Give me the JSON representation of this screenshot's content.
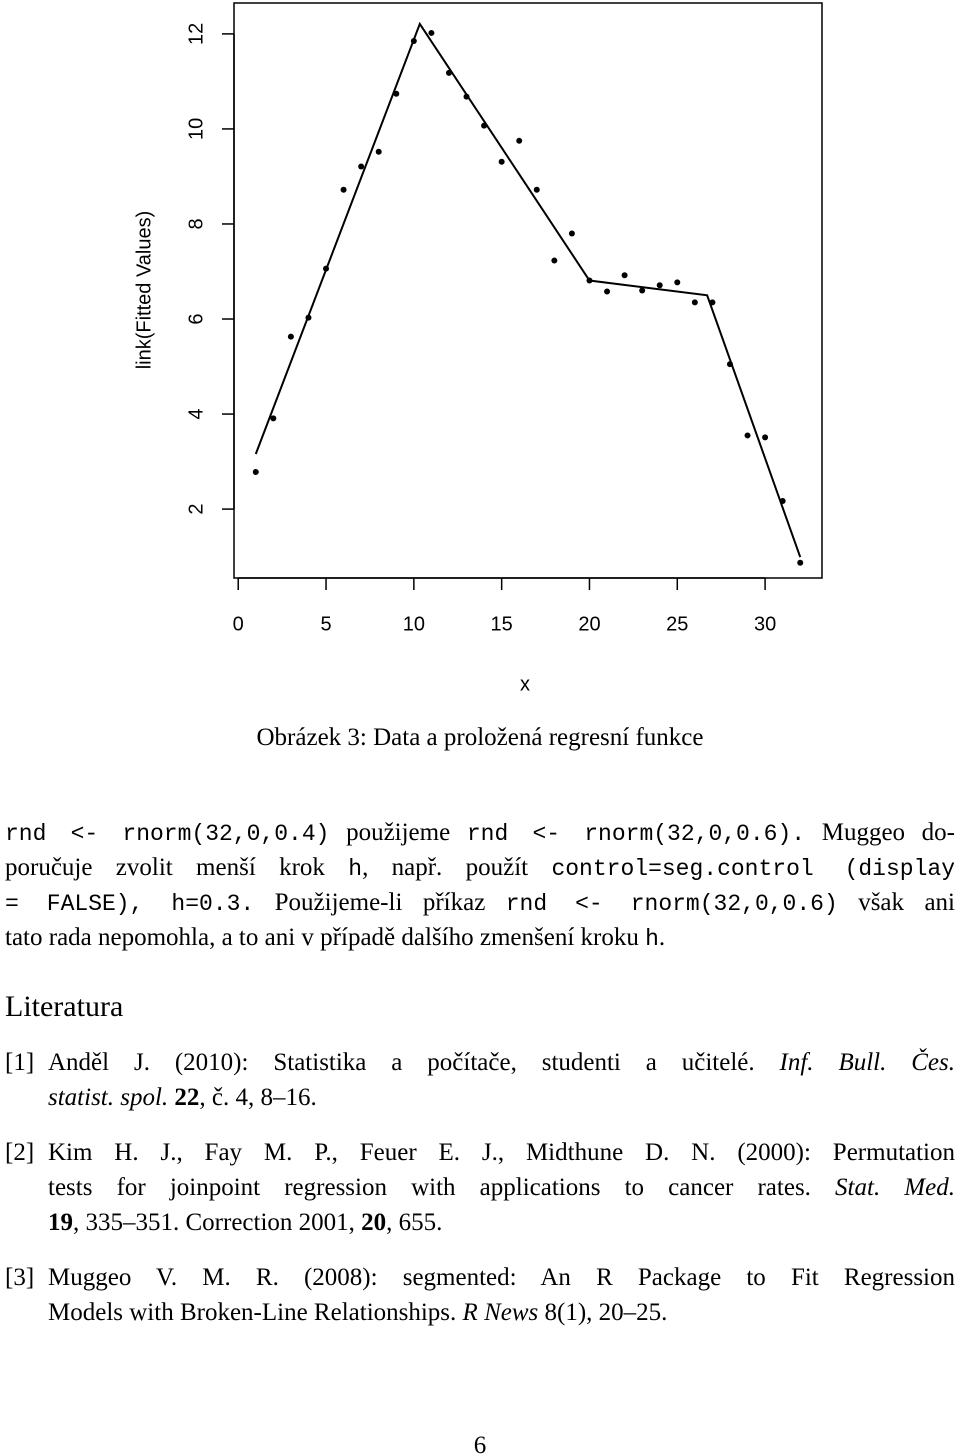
{
  "chart_data": {
    "type": "scatter",
    "xlabel": "x",
    "ylabel": "link(Fitted Values)",
    "x": [
      1,
      2,
      3,
      4,
      5,
      6,
      7,
      8,
      9,
      10,
      11,
      12,
      13,
      14,
      15,
      16,
      17,
      18,
      19,
      20,
      21,
      22,
      23,
      24,
      25,
      26,
      27,
      28,
      29,
      30,
      31,
      32
    ],
    "values": [
      2.78,
      3.91,
      5.63,
      6.03,
      7.06,
      8.72,
      9.21,
      9.52,
      10.74,
      11.85,
      12.02,
      11.18,
      10.68,
      10.07,
      9.31,
      9.75,
      8.72,
      7.23,
      7.8,
      6.81,
      6.58,
      6.92,
      6.6,
      6.71,
      6.77,
      6.35,
      6.35,
      5.05,
      3.55,
      3.51,
      2.17,
      0.87
    ],
    "color": "#000000",
    "fit": {
      "x": [
        1,
        10.34,
        20.0,
        26.7,
        32
      ],
      "values": [
        3.16,
        12.21,
        6.81,
        6.5,
        0.99
      ],
      "color": "#000000"
    },
    "xlim": [
      -0.24,
      33.24
    ],
    "ylim": [
      0.55,
      12.65
    ],
    "xticks": [
      0,
      5,
      10,
      15,
      20,
      25,
      30
    ],
    "yticks": [
      2,
      4,
      6,
      8,
      10,
      12
    ]
  },
  "caption": "Obrázek 3: Data a proložená regresní funkce",
  "paragraph": [
    [
      {
        "text": "rnd <- rnorm(32,0,0.4)",
        "style": "mono"
      },
      {
        "text": " použijeme "
      },
      {
        "text": "rnd <- rnorm(32,0,0.6).",
        "style": "mono"
      },
      {
        "text": " Muggeo do-"
      }
    ],
    [
      {
        "text": "poručuje zvolit menší krok "
      },
      {
        "text": "h",
        "style": "mono"
      },
      {
        "text": ", např. použít "
      },
      {
        "text": "control=seg.control (display",
        "style": "mono"
      }
    ],
    [
      {
        "text": "= FALSE), h=0.3.",
        "style": "mono"
      },
      {
        "text": " Použijeme-li příkaz "
      },
      {
        "text": "rnd <- rnorm(32,0,0.6)",
        "style": "mono"
      },
      {
        "text": " však ani"
      }
    ],
    [
      {
        "text": "tato rada nepomohla, a to ani v případě dalšího zmenšení kroku "
      },
      {
        "text": "h",
        "style": "mono"
      },
      {
        "text": "."
      }
    ]
  ],
  "heading": "Literatura",
  "references": [
    {
      "label": "[1]",
      "lines": [
        [
          {
            "text": "Anděl J. (2010): Statistika a počítače, studenti a učitelé. "
          },
          {
            "text": "Inf. Bull. Čes.",
            "style": "italic"
          }
        ],
        [
          {
            "text": "statist. spol.",
            "style": "italic"
          },
          {
            "text": " "
          },
          {
            "text": "22",
            "style": "bold"
          },
          {
            "text": ", č. 4, 8–16."
          }
        ]
      ]
    },
    {
      "label": "[2]",
      "lines": [
        [
          {
            "text": "Kim H. J., Fay M. P., Feuer E. J., Midthune D. N. (2000): Permutation"
          }
        ],
        [
          {
            "text": "tests for joinpoint regression with applications to cancer rates. "
          },
          {
            "text": "Stat. Med.",
            "style": "italic"
          }
        ],
        [
          {
            "text": "19",
            "style": "bold"
          },
          {
            "text": ", 335–351. Correction 2001, "
          },
          {
            "text": "20",
            "style": "bold"
          },
          {
            "text": ", 655."
          }
        ]
      ]
    },
    {
      "label": "[3]",
      "lines": [
        [
          {
            "text": "Muggeo V. M. R. (2008): segmented: An R Package to Fit Regression"
          }
        ],
        [
          {
            "text": "Models with Broken-Line Relationships. "
          },
          {
            "text": "R News",
            "style": "italic"
          },
          {
            "text": " 8(1), 20–25."
          }
        ]
      ]
    }
  ],
  "page_number": "6"
}
